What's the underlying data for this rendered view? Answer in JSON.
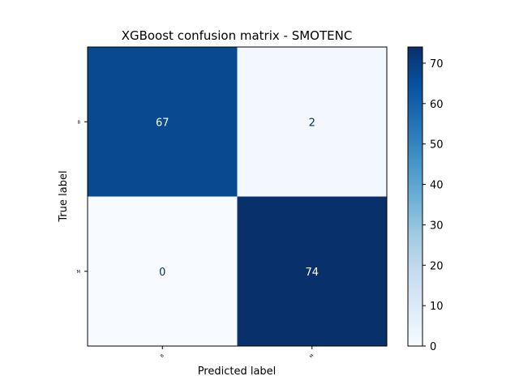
{
  "chart_data": {
    "type": "heatmap",
    "title": "XGBoost confusion matrix - SMOTENC",
    "xlabel": "Predicted label",
    "ylabel": "True label",
    "x_categories": [
      "B",
      "M"
    ],
    "y_categories": [
      "B",
      "M"
    ],
    "values": [
      [
        67,
        2
      ],
      [
        0,
        74
      ]
    ],
    "colormap": "Blues",
    "vmin": 0,
    "vmax": 74,
    "colorbar_ticks": [
      0,
      10,
      20,
      30,
      40,
      50,
      60,
      70
    ],
    "grid": false
  }
}
